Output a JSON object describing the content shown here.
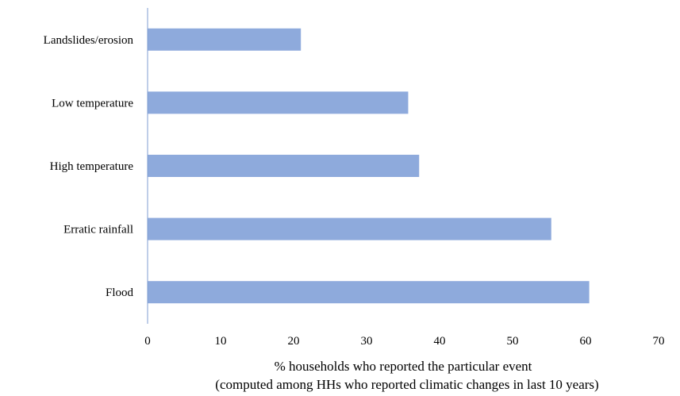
{
  "chart_data": {
    "type": "bar",
    "orientation": "horizontal",
    "categories": [
      "Landslides/erosion",
      "Low temperature",
      "High temperature",
      "Erratic rainfall",
      "Flood"
    ],
    "values": [
      21,
      35.7,
      37.2,
      55.3,
      60.5
    ],
    "xlim": [
      0,
      70
    ],
    "xticks": [
      "0",
      "10",
      "20",
      "30",
      "40",
      "50",
      "60",
      "70"
    ],
    "xlabel_line1": "% households who reported the particular event",
    "xlabel_line2": "(computed among HHs who reported climatic changes in last 10 years)",
    "ylabel": "",
    "title": "",
    "grid": false,
    "bar_color": "#8eaadc",
    "axis_color": "#7f9cd0"
  }
}
